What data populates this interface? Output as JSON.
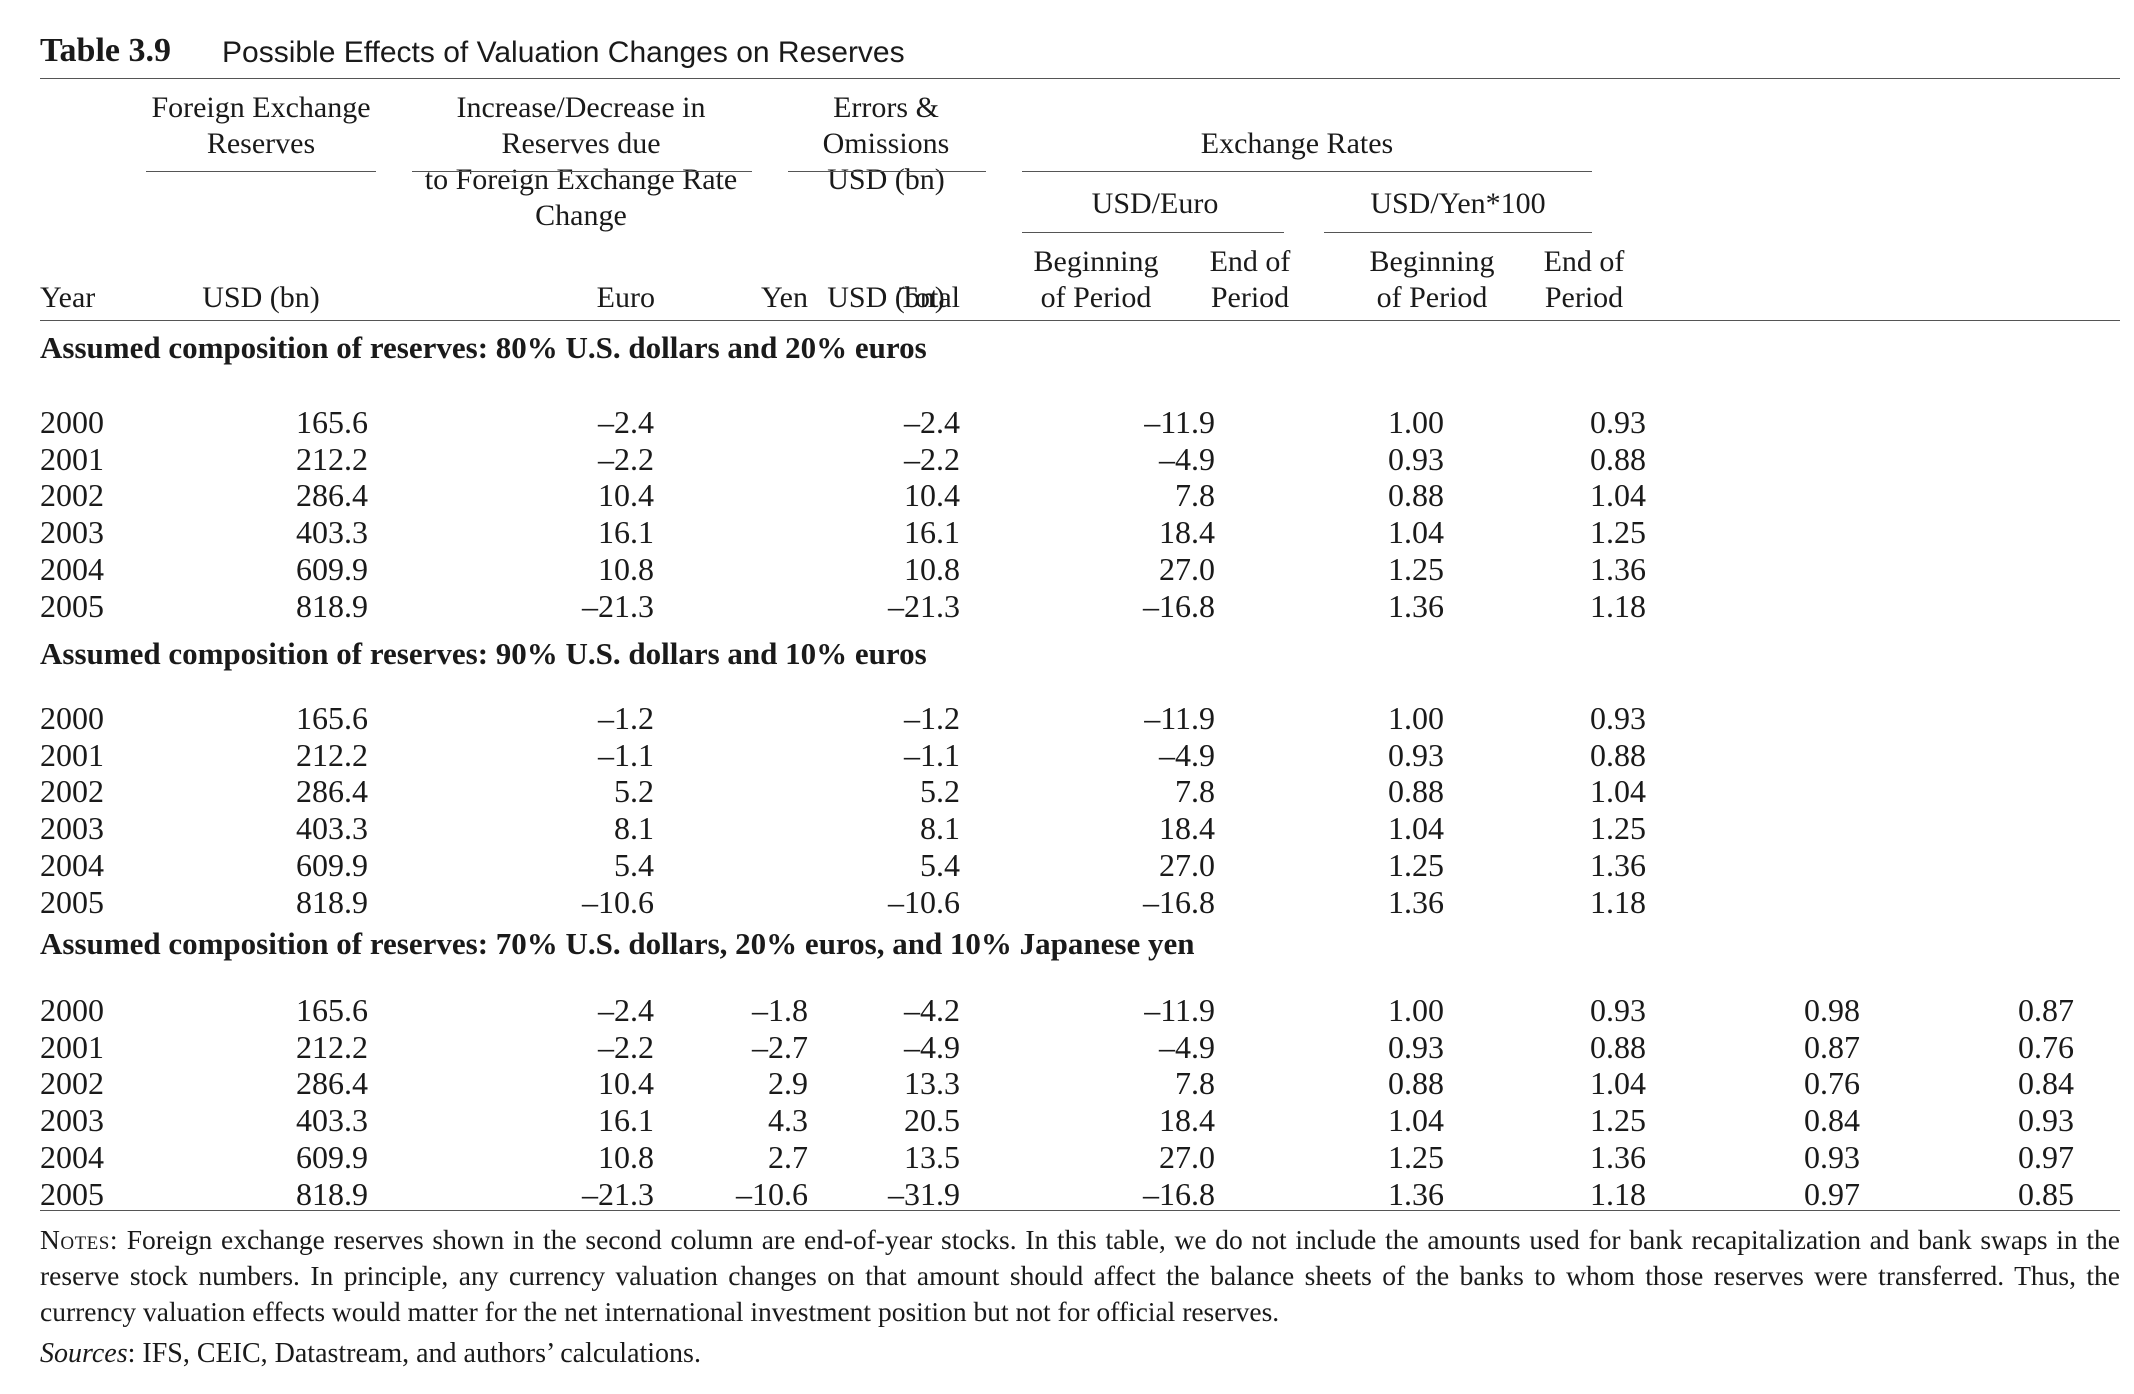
{
  "table": {
    "label": "Table 3.9",
    "title": "Possible Effects of Valuation Changes on Reserves"
  },
  "headers": {
    "fx_reserves_l1": "Foreign Exchange",
    "fx_reserves_l2": "Reserves",
    "incdec_l1": "Increase/Decrease in Reserves due",
    "incdec_l2": "to Foreign Exchange Rate Change",
    "errors_l1": "Errors & Omissions",
    "errors_l2": "USD (bn)",
    "exchange_rates": "Exchange Rates",
    "usd_euro": "USD/Euro",
    "usd_yen": "USD/Yen*100",
    "year": "Year",
    "usd_bn": "USD (bn)",
    "euro": "Euro",
    "yen": "Yen",
    "total": "Total",
    "usd_bn2": "USD (bn)",
    "beg_l1": "Beginning",
    "beg_l2": "of Period",
    "end_l1": "End of",
    "end_l2": "Period",
    "beg2_l1": "Beginning",
    "beg2_l2": "of Period",
    "end2_l1": "End of",
    "end2_l2": "Period"
  },
  "sections": [
    {
      "title": "Assumed composition of reserves: 80% U.S. dollars and 20% euros",
      "rows": [
        {
          "year": "2000",
          "reserves": "165.6",
          "euro": "–2.4",
          "yen": "",
          "total": "–2.4",
          "errors": "–11.9",
          "eur_beg": "1.00",
          "eur_end": "0.93",
          "yen_beg": "",
          "yen_end": ""
        },
        {
          "year": "2001",
          "reserves": "212.2",
          "euro": "–2.2",
          "yen": "",
          "total": "–2.2",
          "errors": "–4.9",
          "eur_beg": "0.93",
          "eur_end": "0.88",
          "yen_beg": "",
          "yen_end": ""
        },
        {
          "year": "2002",
          "reserves": "286.4",
          "euro": "10.4",
          "yen": "",
          "total": "10.4",
          "errors": "7.8",
          "eur_beg": "0.88",
          "eur_end": "1.04",
          "yen_beg": "",
          "yen_end": ""
        },
        {
          "year": "2003",
          "reserves": "403.3",
          "euro": "16.1",
          "yen": "",
          "total": "16.1",
          "errors": "18.4",
          "eur_beg": "1.04",
          "eur_end": "1.25",
          "yen_beg": "",
          "yen_end": ""
        },
        {
          "year": "2004",
          "reserves": "609.9",
          "euro": "10.8",
          "yen": "",
          "total": "10.8",
          "errors": "27.0",
          "eur_beg": "1.25",
          "eur_end": "1.36",
          "yen_beg": "",
          "yen_end": ""
        },
        {
          "year": "2005",
          "reserves": "818.9",
          "euro": "–21.3",
          "yen": "",
          "total": "–21.3",
          "errors": "–16.8",
          "eur_beg": "1.36",
          "eur_end": "1.18",
          "yen_beg": "",
          "yen_end": ""
        }
      ]
    },
    {
      "title": "Assumed composition of reserves: 90% U.S. dollars and 10% euros",
      "rows": [
        {
          "year": "2000",
          "reserves": "165.6",
          "euro": "–1.2",
          "yen": "",
          "total": "–1.2",
          "errors": "–11.9",
          "eur_beg": "1.00",
          "eur_end": "0.93",
          "yen_beg": "",
          "yen_end": ""
        },
        {
          "year": "2001",
          "reserves": "212.2",
          "euro": "–1.1",
          "yen": "",
          "total": "–1.1",
          "errors": "–4.9",
          "eur_beg": "0.93",
          "eur_end": "0.88",
          "yen_beg": "",
          "yen_end": ""
        },
        {
          "year": "2002",
          "reserves": "286.4",
          "euro": "5.2",
          "yen": "",
          "total": "5.2",
          "errors": "7.8",
          "eur_beg": "0.88",
          "eur_end": "1.04",
          "yen_beg": "",
          "yen_end": ""
        },
        {
          "year": "2003",
          "reserves": "403.3",
          "euro": "8.1",
          "yen": "",
          "total": "8.1",
          "errors": "18.4",
          "eur_beg": "1.04",
          "eur_end": "1.25",
          "yen_beg": "",
          "yen_end": ""
        },
        {
          "year": "2004",
          "reserves": "609.9",
          "euro": "5.4",
          "yen": "",
          "total": "5.4",
          "errors": "27.0",
          "eur_beg": "1.25",
          "eur_end": "1.36",
          "yen_beg": "",
          "yen_end": ""
        },
        {
          "year": "2005",
          "reserves": "818.9",
          "euro": "–10.6",
          "yen": "",
          "total": "–10.6",
          "errors": "–16.8",
          "eur_beg": "1.36",
          "eur_end": "1.18",
          "yen_beg": "",
          "yen_end": ""
        }
      ]
    },
    {
      "title": "Assumed composition of reserves: 70% U.S. dollars, 20% euros, and 10% Japanese yen",
      "rows": [
        {
          "year": "2000",
          "reserves": "165.6",
          "euro": "–2.4",
          "yen": "–1.8",
          "total": "–4.2",
          "errors": "–11.9",
          "eur_beg": "1.00",
          "eur_end": "0.93",
          "yen_beg": "0.98",
          "yen_end": "0.87"
        },
        {
          "year": "2001",
          "reserves": "212.2",
          "euro": "–2.2",
          "yen": "–2.7",
          "total": "–4.9",
          "errors": "–4.9",
          "eur_beg": "0.93",
          "eur_end": "0.88",
          "yen_beg": "0.87",
          "yen_end": "0.76"
        },
        {
          "year": "2002",
          "reserves": "286.4",
          "euro": "10.4",
          "yen": "2.9",
          "total": "13.3",
          "errors": "7.8",
          "eur_beg": "0.88",
          "eur_end": "1.04",
          "yen_beg": "0.76",
          "yen_end": "0.84"
        },
        {
          "year": "2003",
          "reserves": "403.3",
          "euro": "16.1",
          "yen": "4.3",
          "total": "20.5",
          "errors": "18.4",
          "eur_beg": "1.04",
          "eur_end": "1.25",
          "yen_beg": "0.84",
          "yen_end": "0.93"
        },
        {
          "year": "2004",
          "reserves": "609.9",
          "euro": "10.8",
          "yen": "2.7",
          "total": "13.5",
          "errors": "27.0",
          "eur_beg": "1.25",
          "eur_end": "1.36",
          "yen_beg": "0.93",
          "yen_end": "0.97"
        },
        {
          "year": "2005",
          "reserves": "818.9",
          "euro": "–21.3",
          "yen": "–10.6",
          "total": "–31.9",
          "errors": "–16.8",
          "eur_beg": "1.36",
          "eur_end": "1.18",
          "yen_beg": "0.97",
          "yen_end": "0.85"
        }
      ]
    }
  ],
  "notes": {
    "label": "Notes:",
    "text": "Foreign exchange reserves shown in the second column are end-of-year stocks. In this table, we do not include the amounts used for bank recapitalization and bank swaps in the reserve stock numbers. In principle, any currency valuation changes on that amount should affect the balance sheets of the banks to whom those reserves were transferred. Thus, the currency valuation effects would matter for the net international investment position but not for official reserves."
  },
  "sources": {
    "label": "Sources",
    "text": ": IFS, CEIC, Datastream, and authors’ calculations."
  }
}
